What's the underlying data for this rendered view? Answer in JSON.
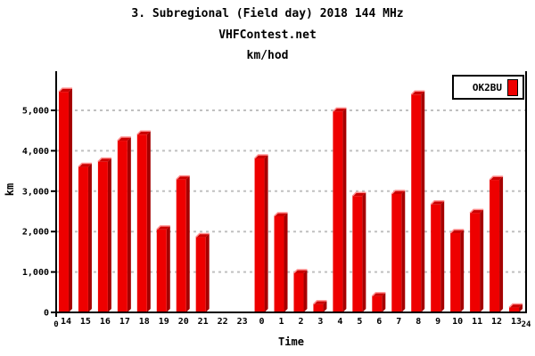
{
  "chart_data": {
    "type": "bar",
    "title": "3. Subregional (Field day) 2018 144 MHz",
    "subtitle": "VHFContest.net",
    "units": "km/hod",
    "xlabel": "Time",
    "ylabel": "km",
    "series_name": "OK2BU",
    "categories": [
      "14",
      "15",
      "16",
      "17",
      "18",
      "19",
      "20",
      "21",
      "22",
      "23",
      "0",
      "1",
      "2",
      "3",
      "4",
      "5",
      "6",
      "7",
      "8",
      "9",
      "10",
      "11",
      "12",
      "13"
    ],
    "values": [
      5460,
      3600,
      3730,
      4250,
      4400,
      2050,
      3290,
      1860,
      0,
      0,
      3810,
      2380,
      970,
      200,
      4970,
      2880,
      400,
      2930,
      5390,
      2670,
      1960,
      2460,
      3280,
      120
    ],
    "x_edge_labels": [
      "0",
      "24"
    ],
    "ytick_values": [
      0,
      1000,
      2000,
      3000,
      4000,
      5000
    ],
    "ytick_labels": [
      "0",
      "1,000",
      "2,000",
      "3,000",
      "4,000",
      "5,000"
    ],
    "ylim": [
      0,
      5950
    ],
    "grid": "dashed-horizontal",
    "legend_position": "top-right",
    "colors": {
      "bar_face": "#ee0000",
      "bar_side": "#a50000",
      "bar_top": "#cc0000",
      "bar_highlight": "#ff9090",
      "grid_line": "#c0c0c0",
      "axis": "#000000"
    }
  }
}
